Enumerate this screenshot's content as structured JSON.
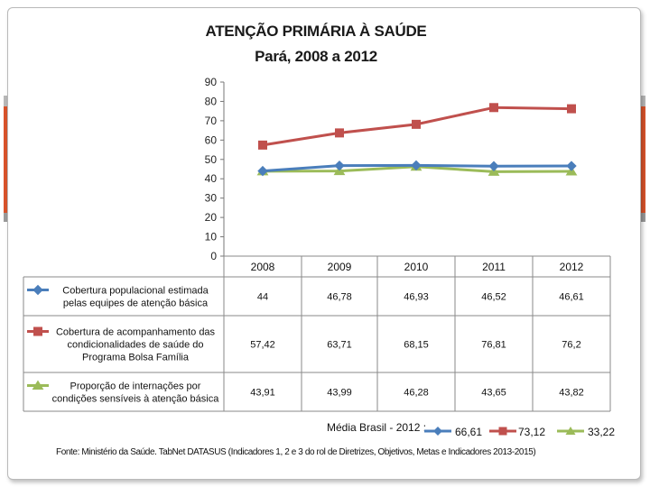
{
  "chart_data": {
    "type": "line",
    "title": "ATENÇÃO PRIMÁRIA À SAÚDE",
    "subtitle": "Pará, 2008 a 2012",
    "categories": [
      "2008",
      "2009",
      "2010",
      "2011",
      "2012"
    ],
    "ylim": [
      0,
      90
    ],
    "yticks": [
      "0",
      "10",
      "20",
      "30",
      "40",
      "50",
      "60",
      "70",
      "80",
      "90"
    ],
    "series": [
      {
        "name_lines": [
          "Cobertura  populacional estimada",
          "pelas equipes de atenção básica"
        ],
        "color": "#4a7ebb",
        "marker": "diamond",
        "values": [
          44,
          46.78,
          46.93,
          46.52,
          46.61
        ],
        "labels": [
          "44",
          "46,78",
          "46,93",
          "46,52",
          "46,61"
        ]
      },
      {
        "name_lines": [
          "Cobertura de acompanhamento das",
          "condicionalidades de saúde do",
          "Programa Bolsa Família"
        ],
        "color": "#c0504d",
        "marker": "square",
        "values": [
          57.42,
          63.71,
          68.15,
          76.81,
          76.2
        ],
        "labels": [
          "57,42",
          "63,71",
          "68,15",
          "76,81",
          "76,2"
        ]
      },
      {
        "name_lines": [
          "Proporção de internações por",
          "condições sensíveis  à atenção básica"
        ],
        "color": "#9bbb59",
        "marker": "triangle",
        "values": [
          43.91,
          43.99,
          46.28,
          43.65,
          43.82
        ],
        "labels": [
          "43,91",
          "43,99",
          "46,28",
          "43,65",
          "43,82"
        ]
      }
    ]
  },
  "footer": {
    "media_label": "Média Brasil - 2012 :",
    "media_values": [
      "66,61",
      "73,12",
      "33,22"
    ],
    "source": "Fonte: Ministério da Saúde. TabNet DATASUS (Indicadores 1, 2 e 3 do rol de Diretrizes, Objetivos, Metas e Indicadores 2013-2015)"
  }
}
